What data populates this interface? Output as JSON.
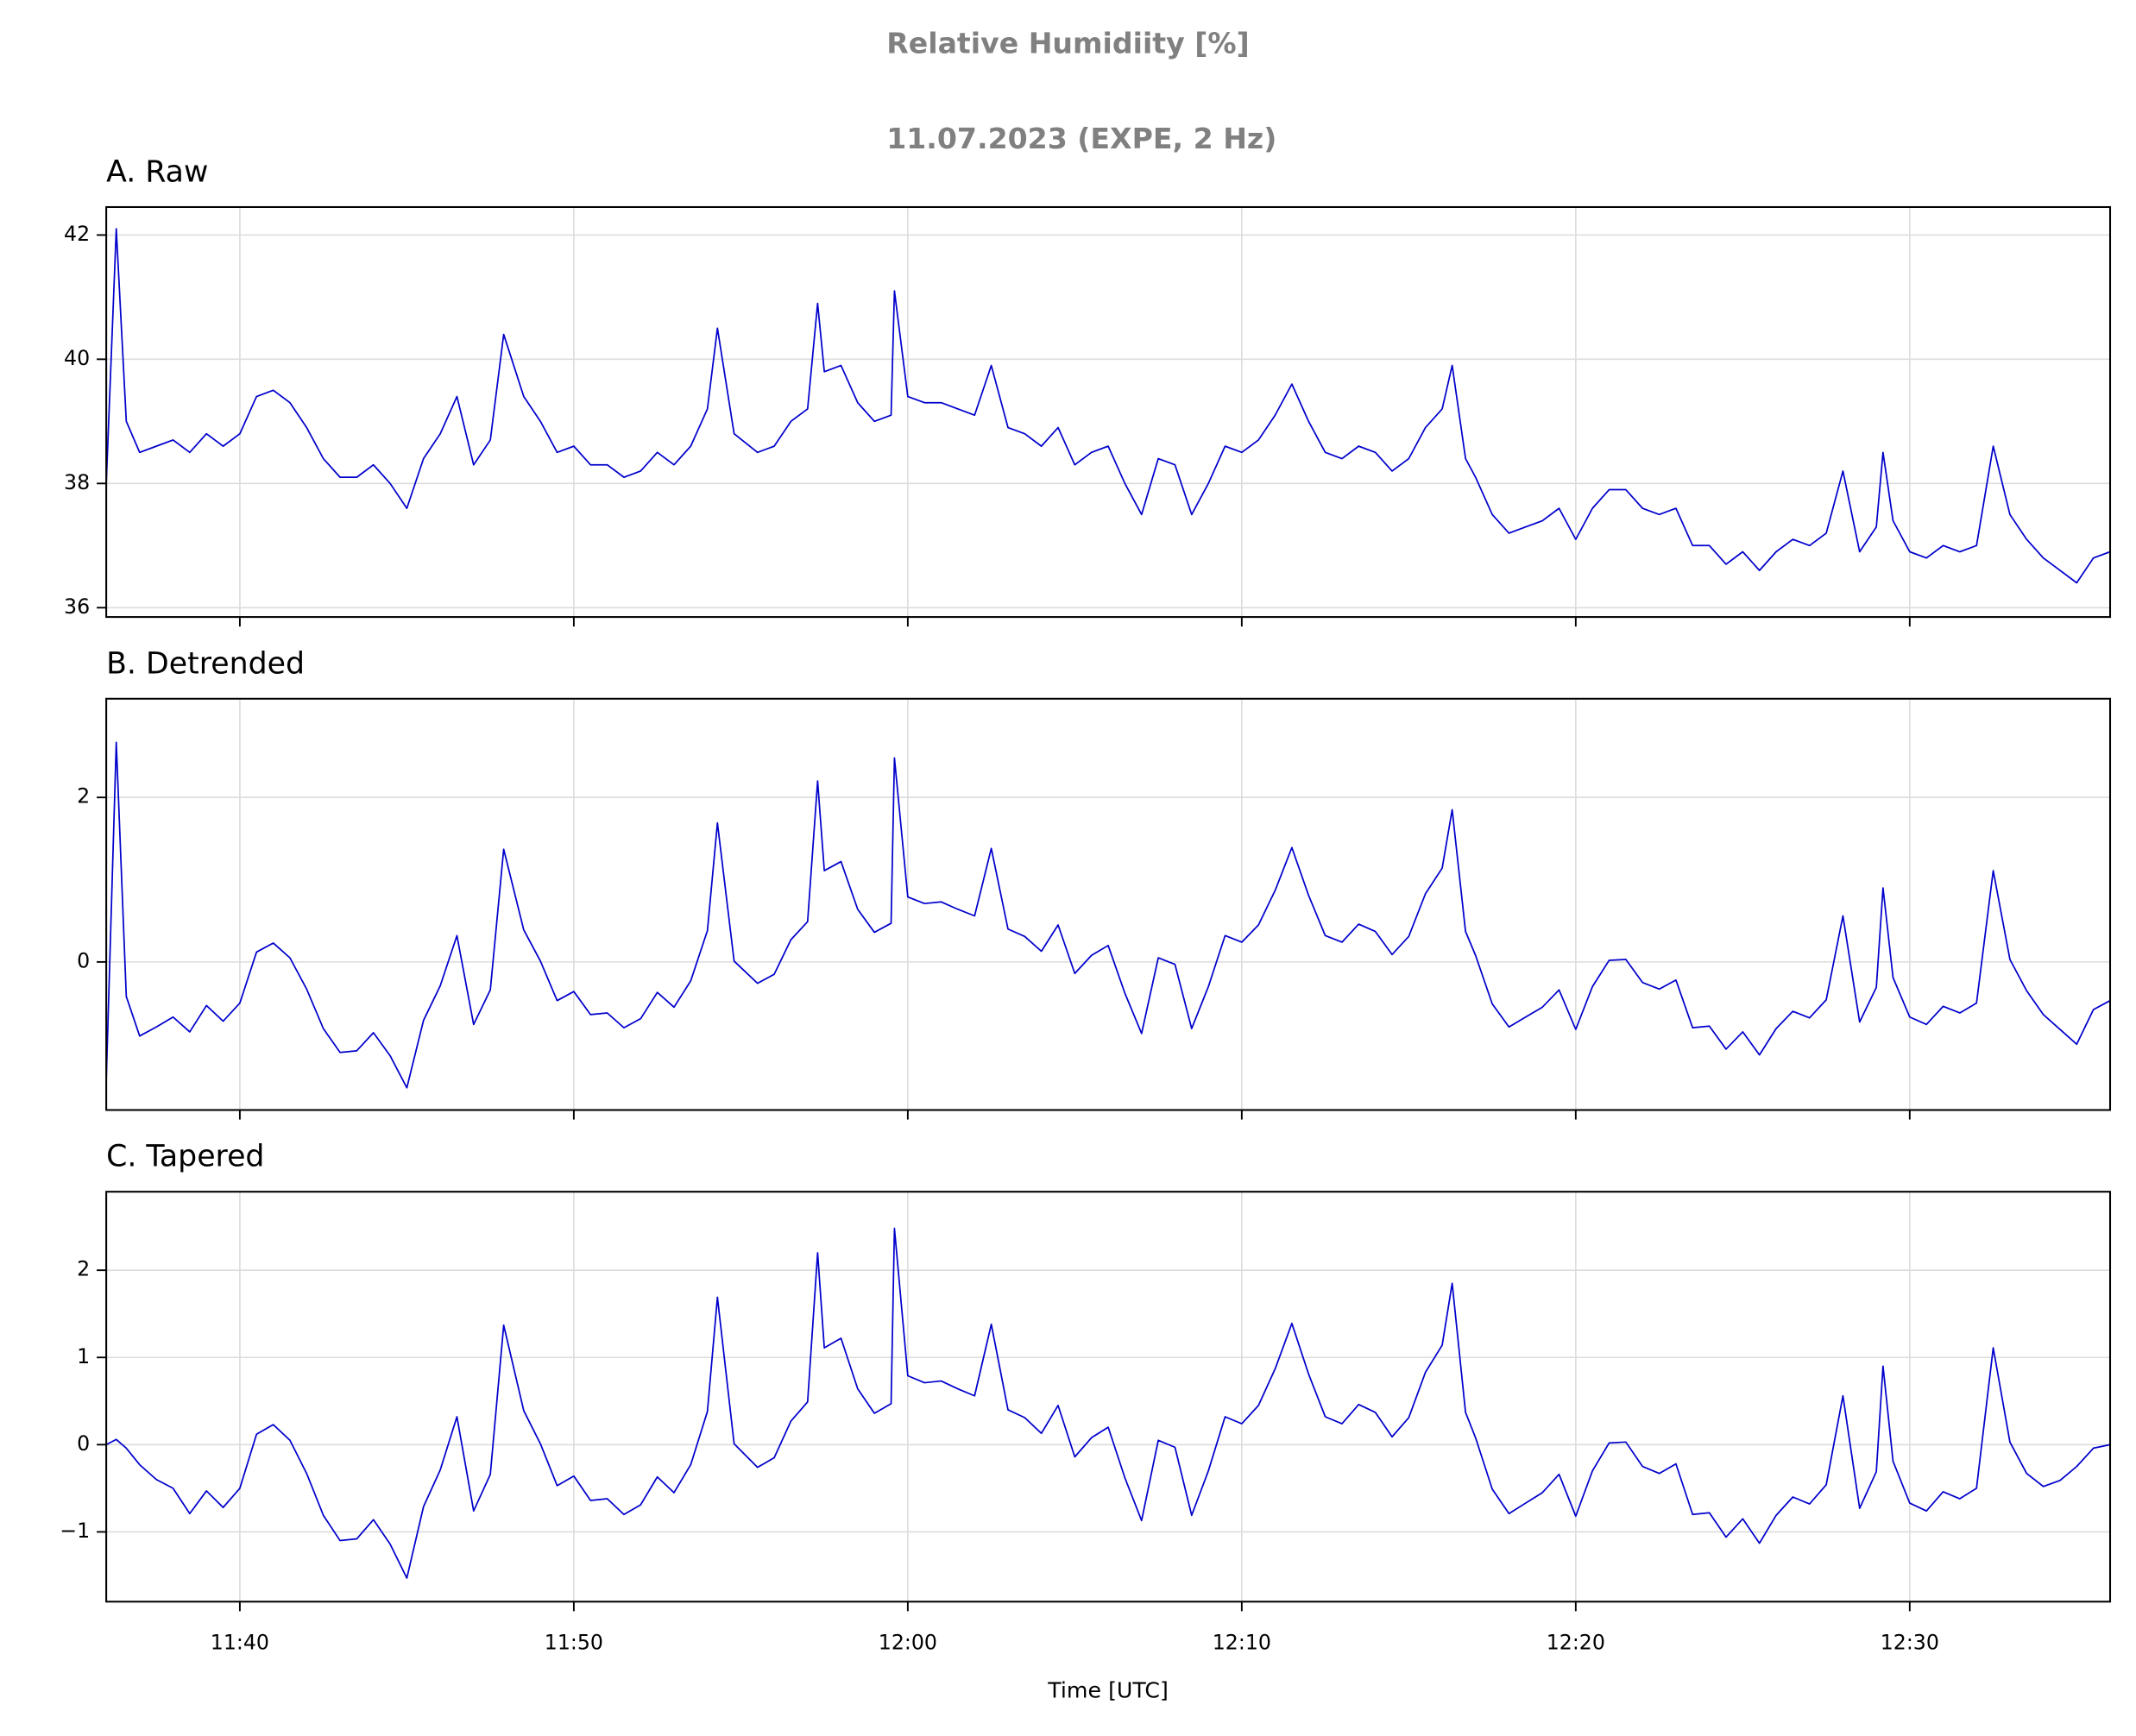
{
  "title": "Relative Humidiity [%]",
  "subtitle": "11.07.2023 (EXPE, 2 Hz)",
  "chart_data": [
    {
      "type": "line",
      "title": "A. Raw",
      "color": "#0000cc",
      "grid": true,
      "xlim": [
        696,
        756
      ],
      "xticks": [
        700,
        710,
        720,
        730,
        740,
        750
      ],
      "ylim": [
        35.85,
        42.45
      ],
      "yticks": [
        36,
        38,
        40,
        42
      ],
      "x": [
        696,
        696.3,
        696.6,
        697,
        697.5,
        698,
        698.5,
        699,
        699.5,
        700,
        700.5,
        701,
        701.5,
        702,
        702.5,
        703,
        703.5,
        704,
        704.5,
        705,
        705.5,
        706,
        706.5,
        707,
        707.5,
        707.9,
        708.5,
        709,
        709.5,
        710,
        710.5,
        711,
        711.5,
        712,
        712.5,
        713,
        713.5,
        714,
        714.3,
        714.8,
        715.5,
        716,
        716.5,
        717,
        717.3,
        717.5,
        718,
        718.5,
        719,
        719.5,
        719.6,
        720,
        720.5,
        721,
        721.5,
        722,
        722.5,
        723,
        723.5,
        724,
        724.5,
        725,
        725.5,
        726,
        726.5,
        727,
        727.5,
        728,
        728.5,
        729,
        729.5,
        730,
        730.5,
        731,
        731.5,
        732,
        732.5,
        733,
        733.5,
        734,
        734.5,
        735,
        735.5,
        736,
        736.3,
        736.7,
        737,
        737.5,
        738,
        738.5,
        739,
        739.5,
        740,
        740.5,
        741,
        741.5,
        742,
        742.5,
        743,
        743.5,
        744,
        744.5,
        745,
        745.5,
        746,
        746.5,
        747,
        747.5,
        748,
        748.5,
        749,
        749.2,
        749.5,
        750,
        750.5,
        751,
        751.5,
        752,
        752.5,
        753,
        753.5,
        754,
        754.5,
        755,
        755.5,
        756
      ],
      "values": [
        38.0,
        42.1,
        39.0,
        38.5,
        38.6,
        38.7,
        38.5,
        38.8,
        38.6,
        38.8,
        39.4,
        39.5,
        39.3,
        38.9,
        38.4,
        38.1,
        38.1,
        38.3,
        38.0,
        37.6,
        38.4,
        38.8,
        39.4,
        38.3,
        38.7,
        40.4,
        39.4,
        39.0,
        38.5,
        38.6,
        38.3,
        38.3,
        38.1,
        38.2,
        38.5,
        38.3,
        38.6,
        39.2,
        40.5,
        38.8,
        38.5,
        38.6,
        39.0,
        39.2,
        40.9,
        39.8,
        39.9,
        39.3,
        39.0,
        39.1,
        41.1,
        39.4,
        39.3,
        39.3,
        39.2,
        39.1,
        39.9,
        38.9,
        38.8,
        38.6,
        38.9,
        38.3,
        38.5,
        38.6,
        38.0,
        37.5,
        38.4,
        38.3,
        37.5,
        38.0,
        38.6,
        38.5,
        38.7,
        39.1,
        39.6,
        39.0,
        38.5,
        38.4,
        38.6,
        38.5,
        38.2,
        38.4,
        38.9,
        39.2,
        39.9,
        38.4,
        38.1,
        37.5,
        37.2,
        37.3,
        37.4,
        37.6,
        37.1,
        37.6,
        37.9,
        37.9,
        37.6,
        37.5,
        37.6,
        37.0,
        37.0,
        36.7,
        36.9,
        36.6,
        36.9,
        37.1,
        37.0,
        37.2,
        38.2,
        36.9,
        37.3,
        38.5,
        37.4,
        36.9,
        36.8,
        37.0,
        36.9,
        37.0,
        38.6,
        37.5,
        37.1,
        36.8,
        36.6,
        36.4,
        36.8,
        36.9
      ]
    },
    {
      "type": "line",
      "title": "B. Detrended",
      "color": "#0000cc",
      "grid": true,
      "xlim": [
        696,
        756
      ],
      "xticks": [
        700,
        710,
        720,
        730,
        740,
        750
      ],
      "ylim": [
        -1.8,
        3.2
      ],
      "yticks": [
        0,
        2
      ],
      "x": [
        696,
        696.3,
        696.6,
        697,
        697.5,
        698,
        698.5,
        699,
        699.5,
        700,
        700.5,
        701,
        701.5,
        702,
        702.5,
        703,
        703.5,
        704,
        704.5,
        705,
        705.5,
        706,
        706.5,
        707,
        707.5,
        707.9,
        708.5,
        709,
        709.5,
        710,
        710.5,
        711,
        711.5,
        712,
        712.5,
        713,
        713.5,
        714,
        714.3,
        714.8,
        715.5,
        716,
        716.5,
        717,
        717.3,
        717.5,
        718,
        718.5,
        719,
        719.5,
        719.6,
        720,
        720.5,
        721,
        721.5,
        722,
        722.5,
        723,
        723.5,
        724,
        724.5,
        725,
        725.5,
        726,
        726.5,
        727,
        727.5,
        728,
        728.5,
        729,
        729.5,
        730,
        730.5,
        731,
        731.5,
        732,
        732.5,
        733,
        733.5,
        734,
        734.5,
        735,
        735.5,
        736,
        736.3,
        736.7,
        737,
        737.5,
        738,
        738.5,
        739,
        739.5,
        740,
        740.5,
        741,
        741.5,
        742,
        742.5,
        743,
        743.5,
        744,
        744.5,
        745,
        745.5,
        746,
        746.5,
        747,
        747.5,
        748,
        748.5,
        749,
        749.2,
        749.5,
        750,
        750.5,
        751,
        751.5,
        752,
        752.5,
        753,
        753.5,
        754,
        754.5,
        755,
        755.5,
        756
      ],
      "values": [
        -1.44,
        2.67,
        -0.42,
        -0.9,
        -0.79,
        -0.67,
        -0.85,
        -0.53,
        -0.72,
        -0.5,
        0.12,
        0.23,
        0.05,
        -0.33,
        -0.81,
        -1.1,
        -1.08,
        -0.86,
        -1.14,
        -1.53,
        -0.71,
        -0.29,
        0.32,
        -0.76,
        -0.34,
        1.37,
        0.39,
        0.01,
        -0.47,
        -0.36,
        -0.64,
        -0.62,
        -0.8,
        -0.69,
        -0.37,
        -0.55,
        -0.23,
        0.38,
        1.69,
        0.01,
        -0.26,
        -0.15,
        0.27,
        0.49,
        2.2,
        1.11,
        1.22,
        0.64,
        0.36,
        0.47,
        2.48,
        0.79,
        0.71,
        0.73,
        0.64,
        0.56,
        1.38,
        0.4,
        0.31,
        0.13,
        0.45,
        -0.14,
        0.08,
        0.2,
        -0.38,
        -0.87,
        0.05,
        -0.03,
        -0.81,
        -0.3,
        0.32,
        0.24,
        0.45,
        0.87,
        1.39,
        0.81,
        0.32,
        0.24,
        0.46,
        0.37,
        0.09,
        0.31,
        0.83,
        1.14,
        1.85,
        0.37,
        0.08,
        -0.51,
        -0.79,
        -0.67,
        -0.55,
        -0.34,
        -0.82,
        -0.3,
        0.02,
        0.03,
        -0.25,
        -0.33,
        -0.22,
        -0.8,
        -0.78,
        -1.06,
        -0.85,
        -1.13,
        -0.81,
        -0.6,
        -0.68,
        -0.46,
        0.56,
        -0.73,
        -0.31,
        0.9,
        -0.19,
        -0.67,
        -0.76,
        -0.54,
        -0.62,
        -0.5,
        1.11,
        0.03,
        -0.35,
        -0.64,
        -0.82,
        -1.0,
        -0.58,
        -0.47
      ]
    },
    {
      "type": "line",
      "title": "C. Tapered",
      "color": "#0000cc",
      "grid": true,
      "xlabel": "Time [UTC]",
      "xlim": [
        696,
        756
      ],
      "xticks": [
        {
          "value": 700,
          "label": "11:40"
        },
        {
          "value": 710,
          "label": "11:50"
        },
        {
          "value": 720,
          "label": "12:00"
        },
        {
          "value": 730,
          "label": "12:10"
        },
        {
          "value": 740,
          "label": "12:20"
        },
        {
          "value": 750,
          "label": "12:30"
        }
      ],
      "ylim": [
        -1.8,
        2.9
      ],
      "yticks": [
        {
          "value": -1,
          "label": "−1"
        },
        0,
        1,
        2
      ],
      "x": [
        696,
        696.3,
        696.6,
        697,
        697.5,
        698,
        698.5,
        699,
        699.5,
        700,
        700.5,
        701,
        701.5,
        702,
        702.5,
        703,
        703.5,
        704,
        704.5,
        705,
        705.5,
        706,
        706.5,
        707,
        707.5,
        707.9,
        708.5,
        709,
        709.5,
        710,
        710.5,
        711,
        711.5,
        712,
        712.5,
        713,
        713.5,
        714,
        714.3,
        714.8,
        715.5,
        716,
        716.5,
        717,
        717.3,
        717.5,
        718,
        718.5,
        719,
        719.5,
        719.6,
        720,
        720.5,
        721,
        721.5,
        722,
        722.5,
        723,
        723.5,
        724,
        724.5,
        725,
        725.5,
        726,
        726.5,
        727,
        727.5,
        728,
        728.5,
        729,
        729.5,
        730,
        730.5,
        731,
        731.5,
        732,
        732.5,
        733,
        733.5,
        734,
        734.5,
        735,
        735.5,
        736,
        736.3,
        736.7,
        737,
        737.5,
        738,
        738.5,
        739,
        739.5,
        740,
        740.5,
        741,
        741.5,
        742,
        742.5,
        743,
        743.5,
        744,
        744.5,
        745,
        745.5,
        746,
        746.5,
        747,
        747.5,
        748,
        748.5,
        749,
        749.2,
        749.5,
        750,
        750.5,
        751,
        751.5,
        752,
        752.5,
        753,
        753.5,
        754,
        754.5,
        755,
        755.5,
        756
      ],
      "values": [
        0,
        0.06,
        -0.04,
        -0.23,
        -0.4,
        -0.5,
        -0.79,
        -0.53,
        -0.72,
        -0.5,
        0.12,
        0.23,
        0.05,
        -0.33,
        -0.81,
        -1.1,
        -1.08,
        -0.86,
        -1.14,
        -1.53,
        -0.71,
        -0.29,
        0.32,
        -0.76,
        -0.34,
        1.37,
        0.39,
        0.01,
        -0.47,
        -0.36,
        -0.64,
        -0.62,
        -0.8,
        -0.69,
        -0.37,
        -0.55,
        -0.23,
        0.38,
        1.69,
        0.01,
        -0.26,
        -0.15,
        0.27,
        0.49,
        2.2,
        1.11,
        1.22,
        0.64,
        0.36,
        0.47,
        2.48,
        0.79,
        0.71,
        0.73,
        0.64,
        0.56,
        1.38,
        0.4,
        0.31,
        0.13,
        0.45,
        -0.14,
        0.08,
        0.2,
        -0.38,
        -0.87,
        0.05,
        -0.03,
        -0.81,
        -0.3,
        0.32,
        0.24,
        0.45,
        0.87,
        1.39,
        0.81,
        0.32,
        0.24,
        0.46,
        0.37,
        0.09,
        0.31,
        0.83,
        1.14,
        1.85,
        0.37,
        0.08,
        -0.51,
        -0.79,
        -0.67,
        -0.55,
        -0.34,
        -0.82,
        -0.3,
        0.02,
        0.03,
        -0.25,
        -0.33,
        -0.22,
        -0.8,
        -0.78,
        -1.06,
        -0.85,
        -1.13,
        -0.81,
        -0.6,
        -0.68,
        -0.46,
        0.56,
        -0.73,
        -0.31,
        0.9,
        -0.19,
        -0.67,
        -0.76,
        -0.54,
        -0.62,
        -0.5,
        1.11,
        0.03,
        -0.33,
        -0.48,
        -0.41,
        -0.25,
        -0.04,
        0
      ]
    }
  ]
}
